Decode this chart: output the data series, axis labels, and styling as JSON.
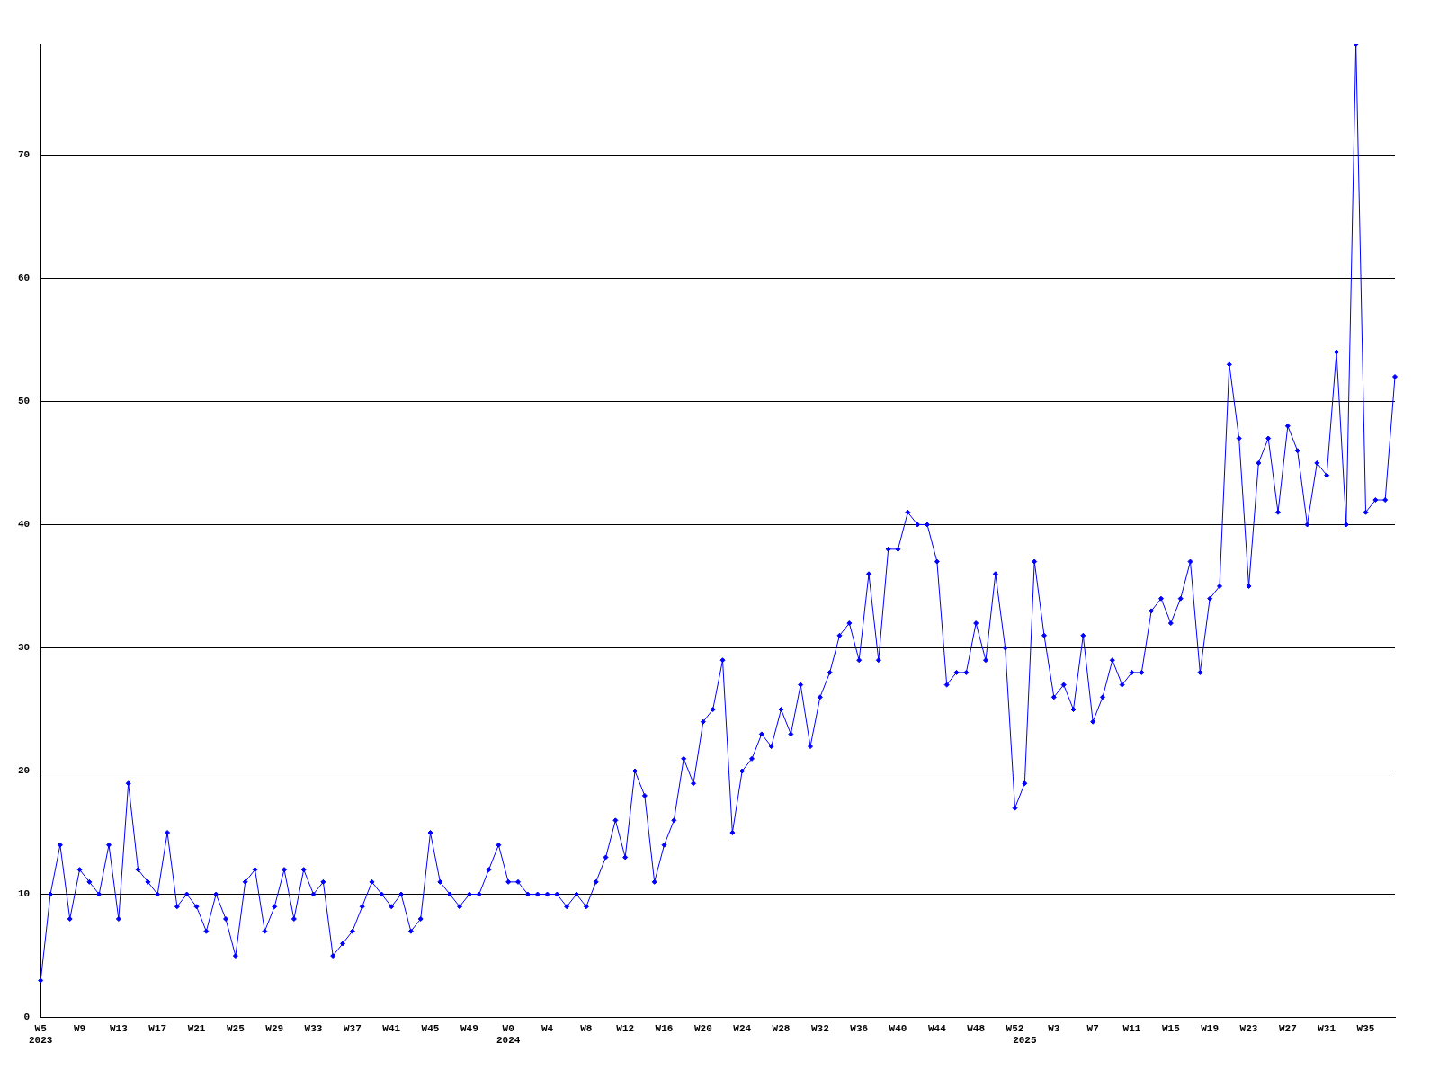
{
  "chart_data": {
    "type": "line",
    "categories": [
      "W5\n2023",
      null,
      null,
      null,
      "W9",
      null,
      null,
      null,
      "W13",
      null,
      null,
      null,
      "W17",
      null,
      null,
      null,
      "W21",
      null,
      null,
      null,
      "W25",
      null,
      null,
      null,
      "W29",
      null,
      null,
      null,
      "W33",
      null,
      null,
      null,
      "W37",
      null,
      null,
      null,
      "W41",
      null,
      null,
      null,
      "W45",
      null,
      null,
      null,
      "W49",
      null,
      null,
      null,
      "W0\n2024",
      null,
      null,
      null,
      "W4",
      null,
      null,
      null,
      "W8",
      null,
      null,
      null,
      "W12",
      null,
      null,
      null,
      "W16",
      null,
      null,
      null,
      "W20",
      null,
      null,
      null,
      "W24",
      null,
      null,
      null,
      "W28",
      null,
      null,
      null,
      "W32",
      null,
      null,
      null,
      "W36",
      null,
      null,
      null,
      "W40",
      null,
      null,
      null,
      "W44",
      null,
      null,
      null,
      "W48",
      null,
      null,
      null,
      "W52",
      "\n2025",
      null,
      null,
      "W3",
      null,
      null,
      null,
      "W7",
      null,
      null,
      null,
      "W11",
      null,
      null,
      null,
      "W15",
      null,
      null,
      null,
      "W19",
      null,
      null,
      null,
      "W23",
      null,
      null,
      null,
      "W27",
      null,
      null,
      null,
      "W31",
      null,
      null,
      null,
      "W35",
      null,
      null,
      null
    ],
    "series": [
      {
        "color": "#0000ff",
        "values": [
          3,
          10,
          14,
          8,
          12,
          11,
          10,
          14,
          8,
          19,
          12,
          11,
          10,
          15,
          9,
          10,
          9,
          7,
          10,
          8,
          5,
          11,
          12,
          7,
          9,
          12,
          8,
          12,
          10,
          11,
          5,
          6,
          7,
          9,
          11,
          10,
          9,
          10,
          7,
          8,
          15,
          11,
          10,
          9,
          10,
          10,
          12,
          14,
          11,
          11,
          10,
          10,
          10,
          10,
          9,
          10,
          9,
          11,
          13,
          16,
          13,
          20,
          18,
          11,
          14,
          16,
          21,
          19,
          24,
          25,
          29,
          15,
          20,
          21,
          23,
          22,
          25,
          23,
          27,
          22,
          26,
          28,
          31,
          32,
          29,
          36,
          29,
          38,
          38,
          41,
          40,
          40,
          37,
          27,
          28,
          28,
          32,
          29,
          36,
          30,
          17,
          19,
          37,
          31,
          26,
          27,
          25,
          31,
          24,
          26,
          29,
          27,
          28,
          28,
          33,
          34,
          32,
          34,
          37,
          28,
          34,
          35,
          53,
          47,
          35,
          45,
          47,
          41,
          48,
          46,
          40,
          45,
          44,
          54,
          40,
          79,
          41,
          42,
          42,
          52
        ]
      }
    ],
    "ylim": [
      0,
      79
    ],
    "yticks": [
      0,
      10,
      20,
      30,
      40,
      50,
      60,
      70
    ],
    "grid": "y",
    "marker": "diamond"
  }
}
